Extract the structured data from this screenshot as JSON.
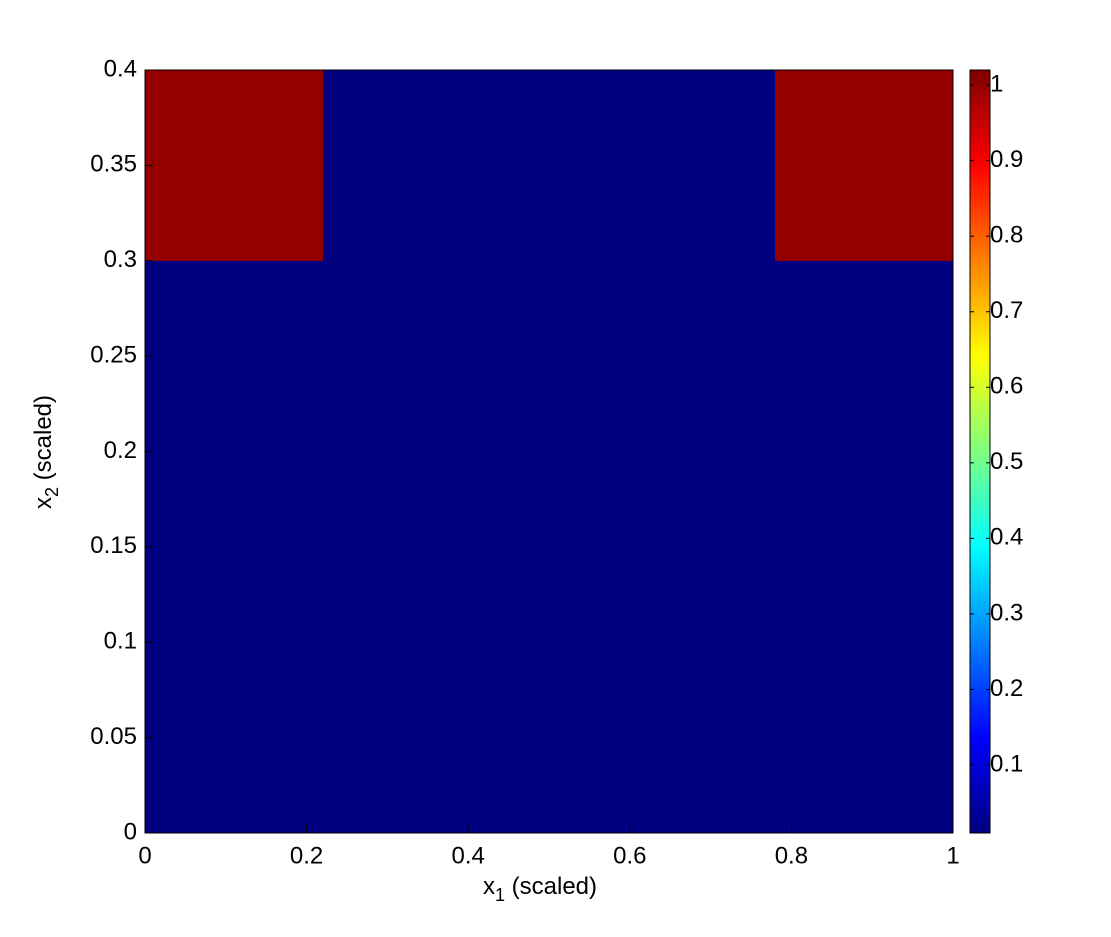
{
  "chart_data": {
    "type": "heatmap",
    "xlabel": [
      "x",
      "1",
      " (scaled)"
    ],
    "ylabel": [
      "x",
      "2",
      " (scaled)"
    ],
    "x_edges": [
      0,
      0.22,
      0.78,
      1
    ],
    "y_edges": [
      0,
      0.3,
      0.4
    ],
    "values": [
      [
        0.01,
        0.01,
        0.01
      ],
      [
        1,
        0.01,
        1
      ]
    ],
    "xlim": [
      0,
      1
    ],
    "xticks": [
      0,
      0.2,
      0.4,
      0.6,
      0.8,
      1
    ],
    "ylim": [
      0,
      0.4
    ],
    "yticks": [
      0,
      0.05,
      0.1,
      0.15,
      0.2,
      0.25,
      0.3,
      0.35,
      0.4
    ],
    "colormap": "jet",
    "clim": [
      0.01,
      1.02
    ],
    "cticks": [
      0.1,
      0.2,
      0.3,
      0.4,
      0.5,
      0.6,
      0.7,
      0.8,
      0.9,
      1
    ]
  }
}
